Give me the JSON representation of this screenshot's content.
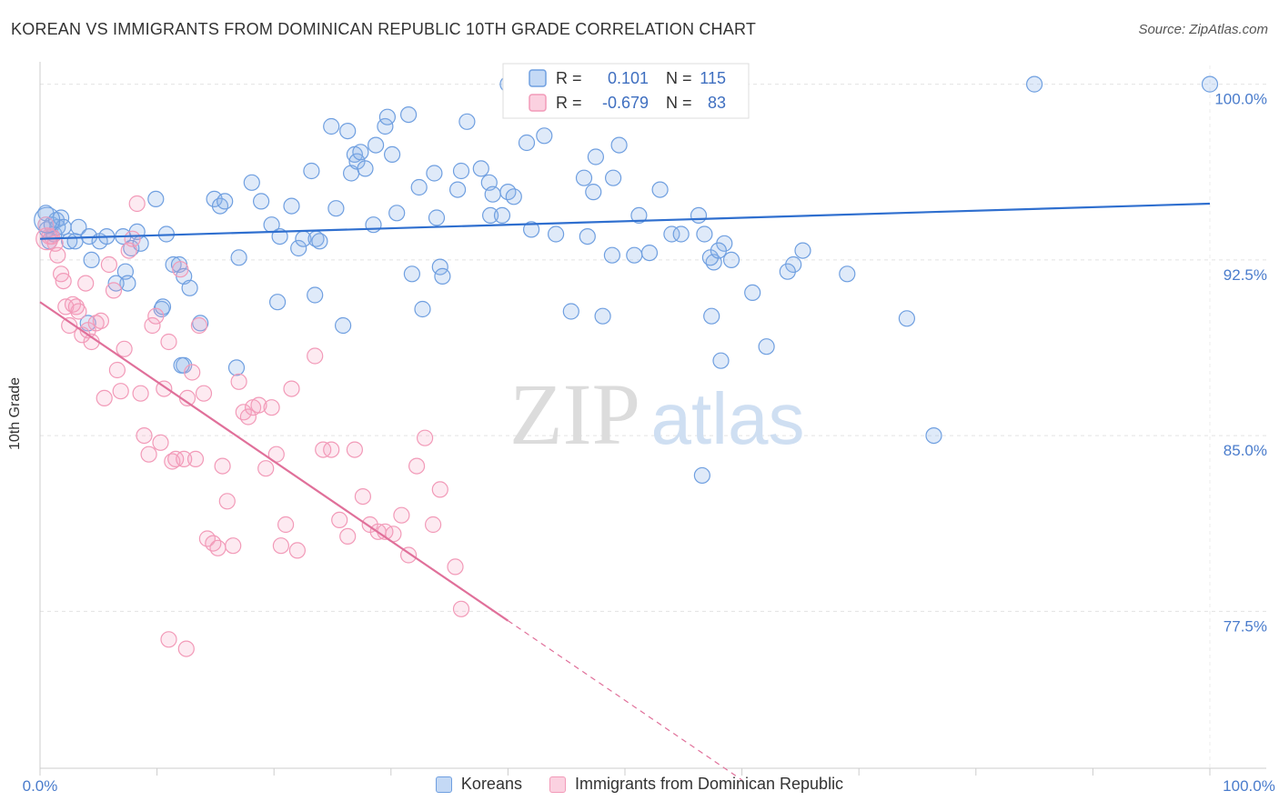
{
  "header": {
    "title": "KOREAN VS IMMIGRANTS FROM DOMINICAN REPUBLIC 10TH GRADE CORRELATION CHART",
    "source": "Source: ZipAtlas.com"
  },
  "watermark": {
    "zip": "ZIP",
    "atlas": "atlas"
  },
  "legend_box": {
    "rows": [
      {
        "r_label": "R =",
        "r_value": "0.101",
        "n_label": "N =",
        "n_value": "115",
        "color": "#6f9fe0"
      },
      {
        "r_label": "R =",
        "r_value": "-0.679",
        "n_label": "N =",
        "n_value": "83",
        "color": "#f29ab8"
      }
    ]
  },
  "bottom_legend": [
    {
      "label": "Koreans",
      "color": "#6f9fe0"
    },
    {
      "label": "Immigrants from Dominican Republic",
      "color": "#f29ab8"
    }
  ],
  "chart_data": {
    "type": "scatter",
    "title": "KOREAN VS IMMIGRANTS FROM DOMINICAN REPUBLIC 10TH GRADE CORRELATION CHART",
    "xlabel": "",
    "ylabel": "10th Grade",
    "xlim": [
      0,
      100
    ],
    "ylim": [
      70.8,
      100.8
    ],
    "x_tick_labels": [
      "0.0%",
      "100.0%"
    ],
    "y_ticks": [
      77.5,
      85.0,
      92.5,
      100.0
    ],
    "y_tick_labels": [
      "77.5%",
      "85.0%",
      "92.5%",
      "100.0%"
    ],
    "grid": true,
    "legend": "top-center",
    "series": [
      {
        "name": "Koreans",
        "color": "#6f9fe0",
        "trend": {
          "x": [
            0,
            100
          ],
          "y": [
            93.4,
            94.9
          ],
          "dashed": false
        },
        "points": [
          [
            0.5,
            94.5
          ],
          [
            0.6,
            93.8
          ],
          [
            0.8,
            93.3
          ],
          [
            1.0,
            94.0
          ],
          [
            1.2,
            93.6
          ],
          [
            1.4,
            94.2
          ],
          [
            1.5,
            93.9
          ],
          [
            1.8,
            94.3
          ],
          [
            2.0,
            93.9
          ],
          [
            2.5,
            93.3
          ],
          [
            3.0,
            93.3
          ],
          [
            3.3,
            93.9
          ],
          [
            4.2,
            93.5
          ],
          [
            5.1,
            93.3
          ],
          [
            5.7,
            93.5
          ],
          [
            7.1,
            93.5
          ],
          [
            7.8,
            93.0
          ],
          [
            8.3,
            93.7
          ],
          [
            8.6,
            93.2
          ],
          [
            10.8,
            93.6
          ],
          [
            4.4,
            92.5
          ],
          [
            7.3,
            92.0
          ],
          [
            11.4,
            92.3
          ],
          [
            11.9,
            92.3
          ],
          [
            12.3,
            91.8
          ],
          [
            7.5,
            91.5
          ],
          [
            6.5,
            91.5
          ],
          [
            12.8,
            91.3
          ],
          [
            10.4,
            90.4
          ],
          [
            10.5,
            90.5
          ],
          [
            13.7,
            89.8
          ],
          [
            4.1,
            89.8
          ],
          [
            12.3,
            88.0
          ],
          [
            12.1,
            88.0
          ],
          [
            16.8,
            87.9
          ],
          [
            9.9,
            95.1
          ],
          [
            14.9,
            95.1
          ],
          [
            15.4,
            94.8
          ],
          [
            15.8,
            95.0
          ],
          [
            18.1,
            95.8
          ],
          [
            17.0,
            92.6
          ],
          [
            18.9,
            95.0
          ],
          [
            19.8,
            94.0
          ],
          [
            20.5,
            93.5
          ],
          [
            21.5,
            94.8
          ],
          [
            22.1,
            93.0
          ],
          [
            22.5,
            93.4
          ],
          [
            23.2,
            96.3
          ],
          [
            23.6,
            93.4
          ],
          [
            23.9,
            93.3
          ],
          [
            20.3,
            90.7
          ],
          [
            23.5,
            91.0
          ],
          [
            24.9,
            98.2
          ],
          [
            25.3,
            94.7
          ],
          [
            25.9,
            89.7
          ],
          [
            26.3,
            98.0
          ],
          [
            26.6,
            96.2
          ],
          [
            26.9,
            97.0
          ],
          [
            27.1,
            96.7
          ],
          [
            27.8,
            96.4
          ],
          [
            27.4,
            97.1
          ],
          [
            28.5,
            94.0
          ],
          [
            28.7,
            97.4
          ],
          [
            29.5,
            98.2
          ],
          [
            29.7,
            98.6
          ],
          [
            30.1,
            97.0
          ],
          [
            30.5,
            94.5
          ],
          [
            31.5,
            98.7
          ],
          [
            32.4,
            95.6
          ],
          [
            31.8,
            91.9
          ],
          [
            32.7,
            90.4
          ],
          [
            33.7,
            96.2
          ],
          [
            33.9,
            94.3
          ],
          [
            34.2,
            92.2
          ],
          [
            34.4,
            91.8
          ],
          [
            35.7,
            95.5
          ],
          [
            36.0,
            96.3
          ],
          [
            36.5,
            98.4
          ],
          [
            37.7,
            96.4
          ],
          [
            38.4,
            95.8
          ],
          [
            38.5,
            94.4
          ],
          [
            38.7,
            95.3
          ],
          [
            39.5,
            94.4
          ],
          [
            40.0,
            95.4
          ],
          [
            40.5,
            95.2
          ],
          [
            41.6,
            97.5
          ],
          [
            42.0,
            93.8
          ],
          [
            43.1,
            97.8
          ],
          [
            44.1,
            93.6
          ],
          [
            45.4,
            90.3
          ],
          [
            46.5,
            96.0
          ],
          [
            46.8,
            93.5
          ],
          [
            47.5,
            96.9
          ],
          [
            49.0,
            96.0
          ],
          [
            49.5,
            97.4
          ],
          [
            48.9,
            92.7
          ],
          [
            48.1,
            90.1
          ],
          [
            52.1,
            92.8
          ],
          [
            51.2,
            94.4
          ],
          [
            50.8,
            92.7
          ],
          [
            53.0,
            95.5
          ],
          [
            54.0,
            93.6
          ],
          [
            54.8,
            93.6
          ],
          [
            56.3,
            94.4
          ],
          [
            56.8,
            93.6
          ],
          [
            57.6,
            92.4
          ],
          [
            57.3,
            92.6
          ],
          [
            58.5,
            93.2
          ],
          [
            58.0,
            92.9
          ],
          [
            59.1,
            92.5
          ],
          [
            60.9,
            91.1
          ],
          [
            64.4,
            92.3
          ],
          [
            62.1,
            88.8
          ],
          [
            63.9,
            92.0
          ],
          [
            65.2,
            92.9
          ],
          [
            69.0,
            91.9
          ],
          [
            74.1,
            90.0
          ],
          [
            76.4,
            85.0
          ],
          [
            57.4,
            90.1
          ],
          [
            58.2,
            88.2
          ]
        ]
      },
      {
        "name": "Immigrants from Dominican Republic",
        "color": "#f29ab8",
        "trend": {
          "x": [
            0,
            40
          ],
          "y": [
            90.7,
            77.1
          ],
          "dashed": false
        },
        "trend_extension": {
          "x": [
            40,
            60
          ],
          "y": [
            77.1,
            70.3
          ],
          "dashed": true
        },
        "points": [
          [
            0.5,
            94.0
          ],
          [
            0.8,
            93.5
          ],
          [
            1.0,
            93.5
          ],
          [
            1.3,
            93.2
          ],
          [
            1.5,
            92.7
          ],
          [
            1.8,
            91.9
          ],
          [
            2.0,
            91.6
          ],
          [
            2.2,
            90.5
          ],
          [
            2.5,
            89.7
          ],
          [
            2.8,
            90.6
          ],
          [
            3.1,
            90.5
          ],
          [
            3.3,
            90.3
          ],
          [
            3.6,
            89.3
          ],
          [
            3.9,
            91.5
          ],
          [
            4.1,
            89.5
          ],
          [
            4.4,
            89.0
          ],
          [
            4.8,
            89.8
          ],
          [
            5.2,
            89.9
          ],
          [
            5.5,
            86.6
          ],
          [
            5.9,
            92.3
          ],
          [
            6.3,
            91.2
          ],
          [
            6.6,
            87.8
          ],
          [
            6.9,
            86.9
          ],
          [
            7.2,
            88.7
          ],
          [
            7.6,
            92.9
          ],
          [
            7.9,
            93.4
          ],
          [
            8.3,
            94.9
          ],
          [
            8.6,
            86.8
          ],
          [
            8.9,
            85.0
          ],
          [
            9.3,
            84.2
          ],
          [
            9.6,
            89.7
          ],
          [
            9.9,
            90.1
          ],
          [
            10.3,
            84.7
          ],
          [
            10.6,
            87.0
          ],
          [
            11.0,
            89.0
          ],
          [
            11.3,
            83.9
          ],
          [
            11.6,
            84.0
          ],
          [
            12.0,
            92.1
          ],
          [
            12.3,
            84.0
          ],
          [
            12.6,
            86.6
          ],
          [
            13.0,
            87.7
          ],
          [
            13.3,
            84.0
          ],
          [
            13.6,
            89.7
          ],
          [
            14.0,
            86.8
          ],
          [
            14.3,
            80.6
          ],
          [
            14.8,
            80.4
          ],
          [
            15.2,
            80.2
          ],
          [
            15.6,
            83.7
          ],
          [
            16.0,
            82.2
          ],
          [
            16.5,
            80.3
          ],
          [
            17.0,
            87.3
          ],
          [
            17.4,
            86.0
          ],
          [
            17.8,
            85.8
          ],
          [
            18.2,
            86.2
          ],
          [
            18.7,
            86.3
          ],
          [
            19.3,
            83.6
          ],
          [
            19.8,
            86.2
          ],
          [
            20.2,
            84.2
          ],
          [
            20.6,
            80.3
          ],
          [
            21.0,
            81.2
          ],
          [
            21.5,
            87.0
          ],
          [
            22.0,
            80.1
          ],
          [
            23.5,
            88.4
          ],
          [
            24.2,
            84.4
          ],
          [
            24.9,
            84.4
          ],
          [
            25.6,
            81.4
          ],
          [
            26.3,
            80.7
          ],
          [
            26.9,
            84.4
          ],
          [
            27.6,
            82.4
          ],
          [
            28.2,
            81.2
          ],
          [
            28.9,
            80.9
          ],
          [
            29.5,
            80.9
          ],
          [
            30.2,
            80.8
          ],
          [
            30.9,
            81.6
          ],
          [
            31.5,
            79.9
          ],
          [
            32.2,
            83.7
          ],
          [
            32.9,
            84.9
          ],
          [
            33.6,
            81.2
          ],
          [
            34.2,
            82.7
          ],
          [
            35.5,
            79.4
          ],
          [
            36.0,
            77.6
          ],
          [
            11.0,
            76.3
          ],
          [
            12.5,
            75.9
          ]
        ]
      }
    ]
  }
}
